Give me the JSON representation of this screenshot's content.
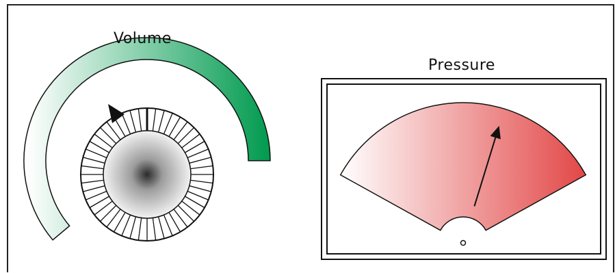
{
  "volume": {
    "label": "Volume",
    "level_fraction": 0.78,
    "colors": {
      "start": "#ffffff",
      "end": "#009a4e"
    },
    "knob_notches": 48
  },
  "pressure": {
    "label": "Pressure",
    "needle_fraction": 0.64,
    "colors": {
      "start": "#ffffff",
      "end": "#e24646"
    }
  },
  "icons": {
    "volume_pointer": "triangle-pointer-icon",
    "pressure_pivot": "pivot-circle-icon",
    "pressure_needle": "arrow-needle-icon"
  }
}
